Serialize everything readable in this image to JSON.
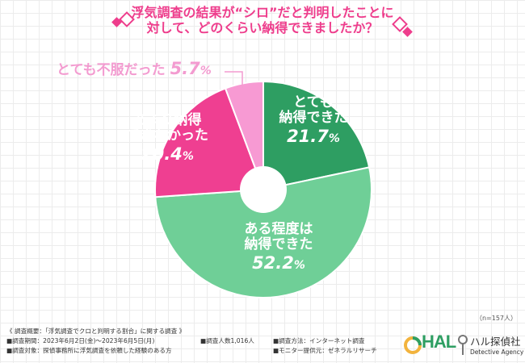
{
  "title": {
    "line1": "浮気調査の結果が“シロ”だと判明したことに",
    "line2": "対して、どのくらい納得できましたか？"
  },
  "chart_data": {
    "type": "pie",
    "slices": [
      {
        "label": "とても納得できた",
        "value": 21.7,
        "color": "#2e9e62"
      },
      {
        "label": "ある程度は納得できた",
        "value": 52.2,
        "color": "#6fcf97"
      },
      {
        "label": "あまり納得できなかった",
        "value": 20.4,
        "color": "#ef3f91"
      },
      {
        "label": "とても不服だった",
        "value": 5.7,
        "color": "#f79ad3"
      }
    ]
  },
  "labels": {
    "s0": {
      "line1": "とても",
      "line2": "納得できた",
      "pct": "21.7",
      "unit": "%"
    },
    "s1": {
      "line1": "ある程度は",
      "line2": "納得できた",
      "pct": "52.2",
      "unit": "%"
    },
    "s2": {
      "line1": "あまり納得",
      "line2": "できなかった",
      "pct": "20.4",
      "unit": "%"
    },
    "s3": {
      "text": "とても不服だった",
      "pct": "5.7",
      "unit": "%"
    }
  },
  "n_note": "（n=157人）",
  "footer": {
    "overview": "《 調査概要：「浮気調査でクロと判明する割合」に関する調査 》",
    "period": "■調査期間：2023年6月2日(金)〜2023年6月5日(月)",
    "target": "■調査対象：探偵事務所に浮気調査を依頼した経験のある方",
    "people": "■調査人数1,016人",
    "method": "■調査方法：インターネット調査",
    "monitor": "■モニター提供元：ゼネラルリサーチ"
  },
  "logo": {
    "mark": "HAL",
    "name_jp": "ハル探偵社",
    "name_en": "Detective Agency"
  }
}
